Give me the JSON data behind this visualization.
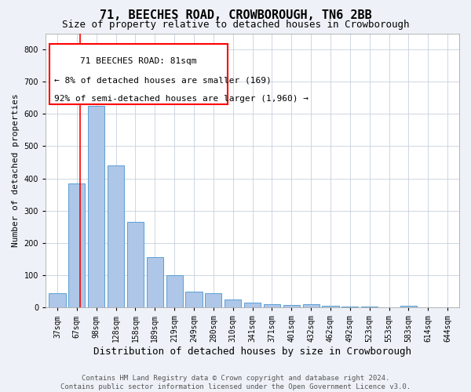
{
  "title": "71, BEECHES ROAD, CROWBOROUGH, TN6 2BB",
  "subtitle": "Size of property relative to detached houses in Crowborough",
  "xlabel": "Distribution of detached houses by size in Crowborough",
  "ylabel": "Number of detached properties",
  "categories": [
    "37sqm",
    "67sqm",
    "98sqm",
    "128sqm",
    "158sqm",
    "189sqm",
    "219sqm",
    "249sqm",
    "280sqm",
    "310sqm",
    "341sqm",
    "371sqm",
    "401sqm",
    "432sqm",
    "462sqm",
    "492sqm",
    "523sqm",
    "553sqm",
    "583sqm",
    "614sqm",
    "644sqm"
  ],
  "values": [
    45,
    385,
    625,
    440,
    265,
    155,
    100,
    50,
    45,
    25,
    15,
    10,
    8,
    10,
    5,
    4,
    2,
    0,
    6,
    0,
    0
  ],
  "bar_color": "#aec6e8",
  "bar_edge_color": "#5a9fd4",
  "vline_x": 1.15,
  "vline_color": "red",
  "ann_line1": "71 BEECHES ROAD: 81sqm",
  "ann_line2": "← 8% of detached houses are smaller (169)",
  "ann_line3": "92% of semi-detached houses are larger (1,960) →",
  "ylim": [
    0,
    850
  ],
  "yticks": [
    0,
    100,
    200,
    300,
    400,
    500,
    600,
    700,
    800
  ],
  "footer_text": "Contains HM Land Registry data © Crown copyright and database right 2024.\nContains public sector information licensed under the Open Government Licence v3.0.",
  "bg_color": "#eef2f8",
  "plot_bg_color": "#ffffff",
  "grid_color": "#c8d0de",
  "title_fontsize": 11,
  "subtitle_fontsize": 9,
  "xlabel_fontsize": 9,
  "ylabel_fontsize": 8,
  "tick_fontsize": 7,
  "footer_fontsize": 6.5,
  "ann_fontsize": 8
}
